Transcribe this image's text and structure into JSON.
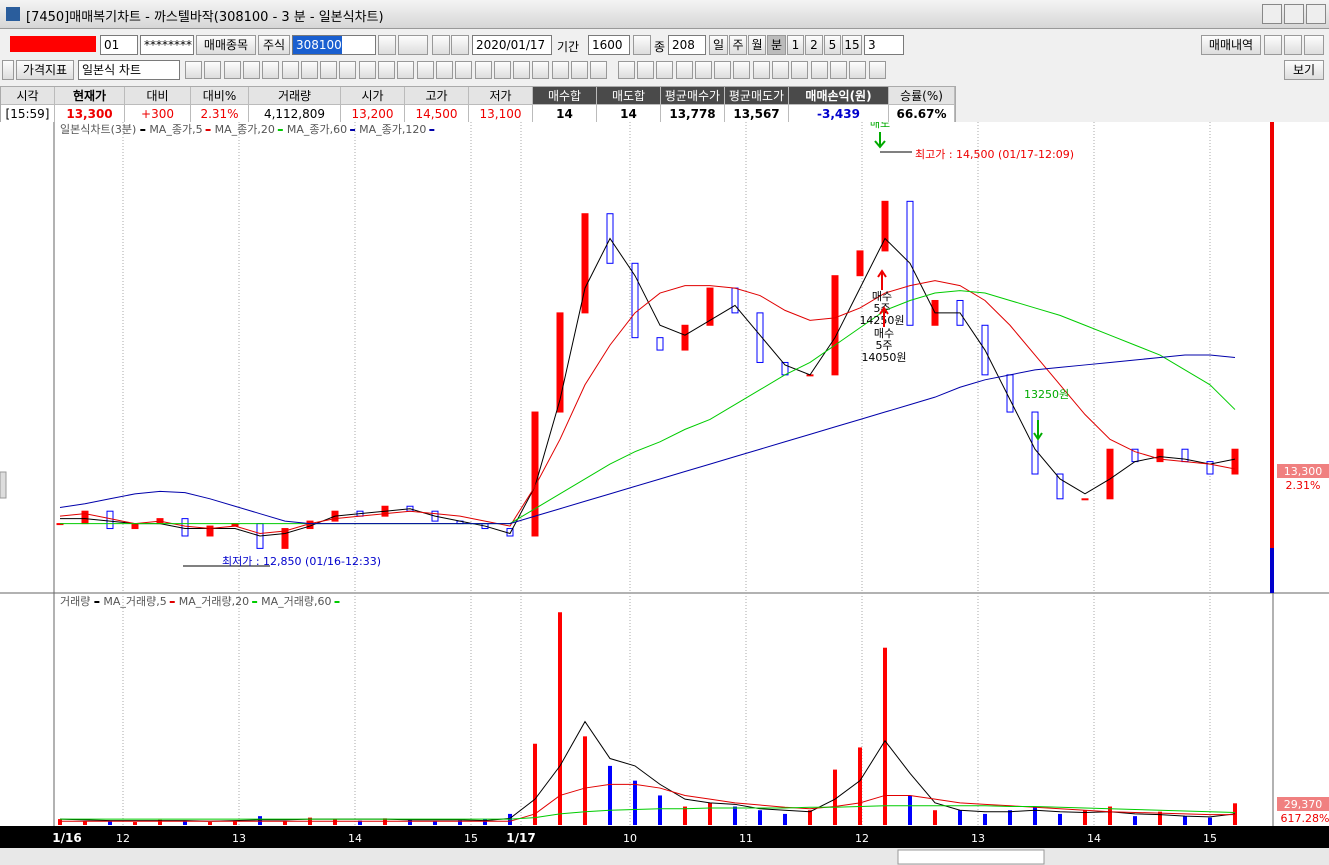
{
  "window": {
    "title": "[7450]매매복기차트 - 까스텔바작(308100 - 3 분 - 일본식차트)"
  },
  "toolbar": {
    "code_field": "01",
    "password": "********",
    "btn_trade_items": "매매종목",
    "market": "주식",
    "stock_code": "308100",
    "date": "2020/01/17",
    "period_label": "기간",
    "period": "1600",
    "count_label": "종",
    "count": "208",
    "units": [
      "일",
      "주",
      "월",
      "분",
      "1",
      "2",
      "5",
      "15"
    ],
    "unit_value": "3",
    "btn_trade_history": "매매내역"
  },
  "toolbar2": {
    "indicator_btn": "가격지표",
    "chart_type": "일본식 차트",
    "view_btn": "보기"
  },
  "info_table": {
    "headers": [
      "시각",
      "현재가",
      "대비",
      "대비%",
      "거래량",
      "시가",
      "고가",
      "저가",
      "매수합",
      "매도합",
      "평균매수가",
      "평균매도가",
      "매매손익(원)",
      "승률(%)"
    ],
    "values": [
      "[15:59]",
      "13,300",
      "+300",
      "2.31%",
      "4,112,809",
      "13,200",
      "14,500",
      "13,100",
      "14",
      "14",
      "13,778",
      "13,567",
      "-3,439",
      "66.67%"
    ]
  },
  "chart_data": {
    "type": "candlestick",
    "title": "일본식차트(3분)",
    "values": [
      13000,
      13050,
      12980,
      13000,
      13020,
      12950,
      12990,
      13000,
      12900,
      12980,
      13010,
      13050,
      13030,
      13070,
      13050,
      13010,
      13000,
      12980,
      12950,
      13450,
      13850,
      14250,
      14050,
      13750,
      13700,
      13800,
      13950,
      13850,
      13650,
      13600,
      13600,
      14000,
      14100,
      14300,
      13800,
      13900,
      13800,
      13600,
      13450,
      13200,
      13100,
      13100,
      13300,
      13250,
      13300,
      13250,
      13200,
      13300
    ],
    "up_color": "#ff0000",
    "down_color": "#0000ff",
    "ylim": [
      12720,
      14620
    ],
    "series": [
      {
        "name": "MA_종가,5",
        "color": "#000000",
        "values": [
          13020,
          13020,
          13010,
          13000,
          13000,
          12980,
          12980,
          12980,
          12950,
          12960,
          12990,
          13030,
          13040,
          13050,
          13060,
          13030,
          13010,
          12990,
          12960,
          13150,
          13500,
          13950,
          14150,
          14000,
          13800,
          13760,
          13820,
          13880,
          13760,
          13640,
          13600,
          13750,
          13950,
          14150,
          14050,
          13850,
          13850,
          13700,
          13500,
          13300,
          13180,
          13120,
          13180,
          13250,
          13270,
          13260,
          13240,
          13260
        ]
      },
      {
        "name": "MA_종가,20",
        "color": "#e00000",
        "values": [
          13030,
          13040,
          13020,
          13000,
          13010,
          12990,
          12980,
          12990,
          12960,
          12970,
          13000,
          13020,
          13030,
          13040,
          13050,
          13040,
          13030,
          13010,
          12990,
          13150,
          13340,
          13560,
          13720,
          13850,
          13930,
          13960,
          13960,
          13950,
          13920,
          13860,
          13820,
          13830,
          13870,
          13930,
          13960,
          13980,
          13960,
          13900,
          13800,
          13680,
          13560,
          13440,
          13340,
          13290,
          13260,
          13250,
          13240,
          13220
        ]
      },
      {
        "name": "MA_종가,60",
        "color": "#00cc00",
        "values": [
          13000,
          13000,
          13000,
          13000,
          13000,
          13000,
          13000,
          13000,
          13000,
          13000,
          13000,
          13000,
          13000,
          13000,
          13000,
          13000,
          13000,
          13000,
          13000,
          13060,
          13120,
          13180,
          13240,
          13290,
          13330,
          13380,
          13420,
          13480,
          13540,
          13600,
          13650,
          13720,
          13790,
          13860,
          13900,
          13930,
          13940,
          13930,
          13900,
          13870,
          13840,
          13800,
          13760,
          13720,
          13680,
          13620,
          13560,
          13460
        ]
      },
      {
        "name": "MA_종가,120",
        "color": "#0000aa",
        "values": [
          13065,
          13080,
          13100,
          13120,
          13130,
          13125,
          13100,
          13070,
          13040,
          13010,
          13000,
          13000,
          13000,
          13000,
          13000,
          13000,
          13000,
          13000,
          13000,
          13030,
          13060,
          13090,
          13120,
          13150,
          13180,
          13210,
          13240,
          13270,
          13300,
          13330,
          13360,
          13390,
          13420,
          13450,
          13480,
          13510,
          13550,
          13580,
          13600,
          13620,
          13630,
          13640,
          13650,
          13660,
          13670,
          13680,
          13680,
          13670
        ]
      }
    ],
    "xaxis_labels": [
      "1/16",
      "12",
      "13",
      "14",
      "15",
      "1/17",
      "10",
      "11",
      "12",
      "13",
      "14",
      "15"
    ],
    "annotations": {
      "high": "최고가 : 14,500 (01/17-12:09)",
      "low": "최저가 : 12,850 (01/16-12:33)",
      "sell_top": "매도",
      "buy1": [
        "매수",
        "5주",
        "14250원"
      ],
      "buy2": [
        "매수",
        "5주",
        "14050원"
      ],
      "sell2": "13250원"
    },
    "last_price_label": "13,300",
    "last_change_label": "2.31%",
    "volume": {
      "title": "거래량",
      "ylim": [
        0,
        310000
      ],
      "values": [
        8000,
        5000,
        6000,
        4000,
        7000,
        5000,
        4000,
        6000,
        12000,
        5000,
        10000,
        8000,
        6000,
        9000,
        7000,
        5000,
        6000,
        8000,
        15000,
        110000,
        288000,
        120000,
        80000,
        60000,
        40000,
        25000,
        30000,
        25000,
        20000,
        15000,
        20000,
        75000,
        105000,
        240000,
        40000,
        20000,
        20000,
        15000,
        20000,
        25000,
        15000,
        20000,
        25000,
        12000,
        18000,
        12000,
        10000,
        29370
      ],
      "series": [
        {
          "name": "MA_거래량,5",
          "color": "#000000",
          "values": [
            8000,
            7000,
            6000,
            6000,
            6000,
            6000,
            5000,
            6000,
            7000,
            7000,
            8000,
            8000,
            8000,
            8000,
            7000,
            7000,
            7000,
            6000,
            9000,
            35000,
            80000,
            140000,
            90000,
            80000,
            55000,
            35000,
            30000,
            28000,
            22000,
            20000,
            18000,
            35000,
            60000,
            114000,
            70000,
            30000,
            20000,
            18000,
            18000,
            20000,
            18000,
            17000,
            18000,
            15000,
            14000,
            12000,
            11000,
            15000
          ]
        },
        {
          "name": "MA_거래량,20",
          "color": "#e00000",
          "values": [
            5000,
            5000,
            5000,
            5000,
            5000,
            5000,
            5000,
            5000,
            5000,
            5000,
            5000,
            5000,
            5000,
            5000,
            5000,
            5000,
            5000,
            5000,
            5000,
            15000,
            40000,
            50000,
            55000,
            55000,
            50000,
            40000,
            35000,
            30000,
            27000,
            24000,
            22000,
            25000,
            30000,
            40000,
            40000,
            35000,
            30000,
            28000,
            26000,
            24000,
            22000,
            20000,
            18000,
            17000,
            16000,
            15000,
            14000,
            14000
          ]
        },
        {
          "name": "MA_거래량,60",
          "color": "#00cc00",
          "values": [
            8000,
            8000,
            8000,
            8000,
            8000,
            8000,
            8000,
            8000,
            8000,
            8000,
            8000,
            8000,
            8000,
            8000,
            8000,
            8000,
            8000,
            8000,
            8000,
            10000,
            15000,
            18000,
            20000,
            21000,
            22000,
            22000,
            23000,
            23000,
            23000,
            23000,
            24000,
            24000,
            25000,
            26000,
            26000,
            26000,
            26000,
            26000,
            25000,
            25000,
            24000,
            23000,
            22000,
            21000,
            20000,
            19000,
            18000,
            17000
          ]
        }
      ],
      "last_volume_label": "29,370",
      "ratio_label": "617.28%"
    }
  }
}
